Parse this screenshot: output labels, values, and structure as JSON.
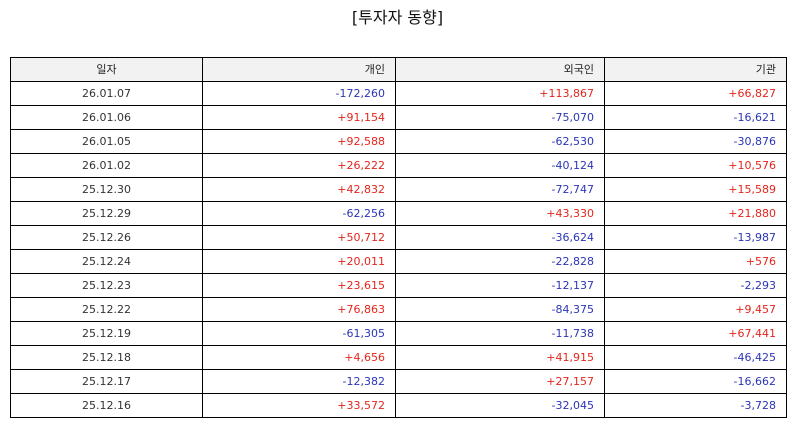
{
  "title": "[투자자 동향]",
  "colors": {
    "positive": "#e3261d",
    "negative": "#2b35b8",
    "header_bg": "#f2f2f2"
  },
  "table": {
    "headers": [
      "일자",
      "개인",
      "외국인",
      "기관"
    ],
    "rows": [
      [
        "26.01.07",
        "-172,260",
        "+113,867",
        "+66,827"
      ],
      [
        "26.01.06",
        "+91,154",
        "-75,070",
        "-16,621"
      ],
      [
        "26.01.05",
        "+92,588",
        "-62,530",
        "-30,876"
      ],
      [
        "26.01.02",
        "+26,222",
        "-40,124",
        "+10,576"
      ],
      [
        "25.12.30",
        "+42,832",
        "-72,747",
        "+15,589"
      ],
      [
        "25.12.29",
        "-62,256",
        "+43,330",
        "+21,880"
      ],
      [
        "25.12.26",
        "+50,712",
        "-36,624",
        "-13,987"
      ],
      [
        "25.12.24",
        "+20,011",
        "-22,828",
        "+576"
      ],
      [
        "25.12.23",
        "+23,615",
        "-12,137",
        "-2,293"
      ],
      [
        "25.12.22",
        "+76,863",
        "-84,375",
        "+9,457"
      ],
      [
        "25.12.19",
        "-61,305",
        "-11,738",
        "+67,441"
      ],
      [
        "25.12.18",
        "+4,656",
        "+41,915",
        "-46,425"
      ],
      [
        "25.12.17",
        "-12,382",
        "+27,157",
        "-16,662"
      ],
      [
        "25.12.16",
        "+33,572",
        "-32,045",
        "-3,728"
      ]
    ]
  }
}
